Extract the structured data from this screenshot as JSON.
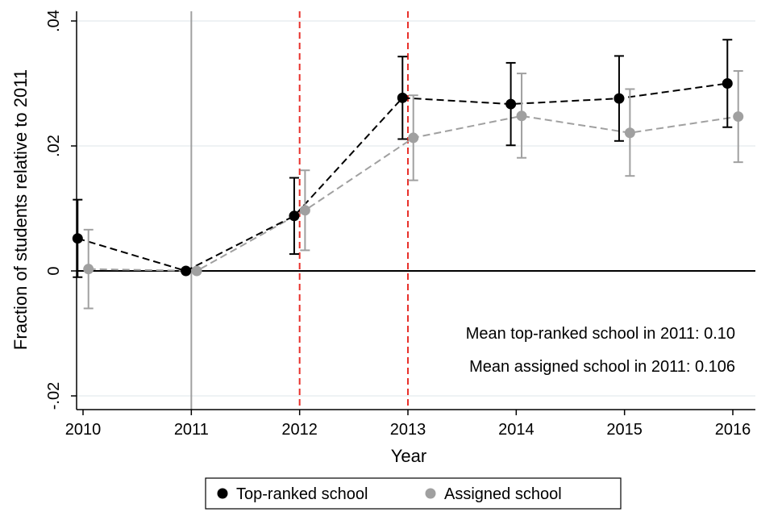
{
  "chart_data": {
    "type": "line",
    "xlabel": "Year",
    "ylabel": "Fraction of students relative to 2011",
    "x": [
      2010,
      2011,
      2012,
      2013,
      2014,
      2015,
      2016
    ],
    "xlim": [
      2010,
      2016
    ],
    "ylim": [
      -0.02,
      0.04
    ],
    "x_ticks": [
      {
        "value": 2010,
        "label": "2010"
      },
      {
        "value": 2011,
        "label": "2011"
      },
      {
        "value": 2012,
        "label": "2012"
      },
      {
        "value": 2013,
        "label": "2013"
      },
      {
        "value": 2014,
        "label": "2014"
      },
      {
        "value": 2015,
        "label": "2015"
      },
      {
        "value": 2016,
        "label": "2016"
      }
    ],
    "y_ticks": [
      {
        "value": -0.02,
        "label": "-.02"
      },
      {
        "value": 0,
        "label": "0"
      },
      {
        "value": 0.02,
        "label": ".02"
      },
      {
        "value": 0.04,
        "label": ".04"
      }
    ],
    "grid": "horizontal",
    "reference_lines": [
      {
        "axis": "x",
        "value": 2011,
        "color": "#a0a0a0",
        "style": "solid"
      },
      {
        "axis": "x",
        "value": 2012,
        "color": "#e8302a",
        "style": "dashed"
      },
      {
        "axis": "x",
        "value": 2013,
        "color": "#e8302a",
        "style": "dashed"
      },
      {
        "axis": "y",
        "value": 0,
        "color": "#000000",
        "style": "solid"
      }
    ],
    "series": [
      {
        "name": "Top-ranked school",
        "color": "#000000",
        "x_offset": -0.05,
        "values": [
          0.0052,
          0.0,
          0.0088,
          0.0277,
          0.0267,
          0.0276,
          0.03
        ],
        "ci_low": [
          -0.001,
          0.0,
          0.0027,
          0.0211,
          0.0201,
          0.0208,
          0.023
        ],
        "ci_high": [
          0.0114,
          0.0,
          0.0149,
          0.0343,
          0.0333,
          0.0344,
          0.037
        ]
      },
      {
        "name": "Assigned school",
        "color": "#a0a0a0",
        "x_offset": 0.05,
        "values": [
          0.0003,
          0.0,
          0.0097,
          0.0213,
          0.0248,
          0.0221,
          0.0247
        ],
        "ci_low": [
          -0.006,
          0.0,
          0.0033,
          0.0145,
          0.0181,
          0.0152,
          0.0174
        ],
        "ci_high": [
          0.0066,
          0.0,
          0.0161,
          0.0281,
          0.0316,
          0.0291,
          0.032
        ]
      }
    ],
    "annotations": [
      {
        "text": "Mean top-ranked school in 2011: 0.10"
      },
      {
        "text": "Mean assigned school in 2011: 0.106"
      }
    ],
    "legend": {
      "position": "bottom",
      "items": [
        "Top-ranked school",
        "Assigned school"
      ]
    }
  }
}
